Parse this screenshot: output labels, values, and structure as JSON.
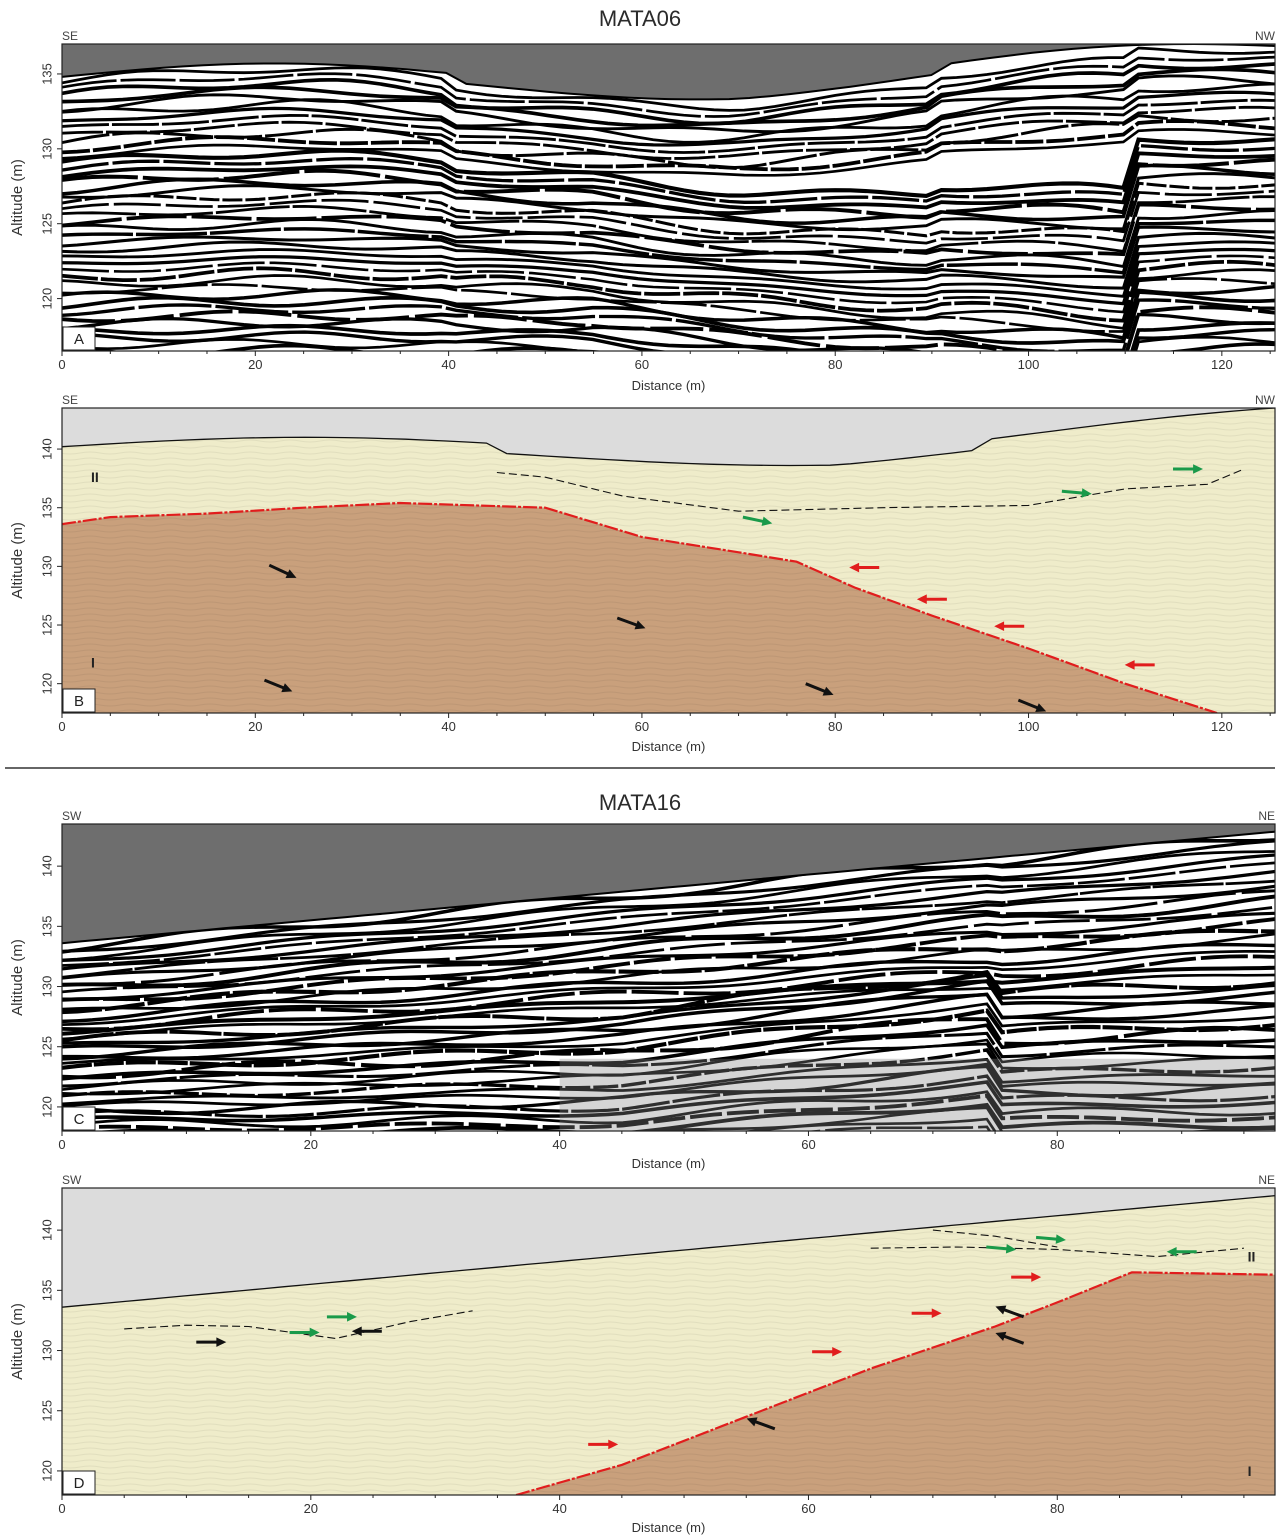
{
  "figure": {
    "top": {
      "title": "MATA06",
      "panels": [
        {
          "id": "A",
          "type": "radargram",
          "left_dir": "SE",
          "right_dir": "NW",
          "x_label": "Distance (m)",
          "y_label": "Altitude (m)",
          "x_ticks": [
            "0",
            "20",
            "40",
            "60",
            "80",
            "100",
            "120"
          ],
          "y_ticks": [
            "135",
            "130",
            "125",
            "120"
          ],
          "x_range": [
            0,
            125.5
          ],
          "y_range": [
            116.5,
            137
          ]
        },
        {
          "id": "B",
          "type": "interpretation",
          "left_dir": "SE",
          "right_dir": "NW",
          "x_label": "Distance (m)",
          "y_label": "Altitude (m)",
          "x_ticks": [
            "0",
            "20",
            "40",
            "60",
            "80",
            "100",
            "120"
          ],
          "y_ticks": [
            "140",
            "135",
            "130",
            "125",
            "120"
          ],
          "x_range": [
            0,
            125.5
          ],
          "y_range": [
            117.5,
            143.5
          ],
          "units": [
            "II",
            "I"
          ]
        }
      ]
    },
    "bottom": {
      "title": "MATA16",
      "panels": [
        {
          "id": "C",
          "type": "radargram",
          "left_dir": "SW",
          "right_dir": "NE",
          "x_label": "Distance (m)",
          "y_label": "Altitude (m)",
          "x_ticks": [
            "0",
            "20",
            "40",
            "60",
            "80"
          ],
          "y_ticks": [
            "140",
            "135",
            "130",
            "125",
            "120"
          ],
          "x_range": [
            0,
            97.5
          ],
          "y_range": [
            118,
            143.5
          ]
        },
        {
          "id": "D",
          "type": "interpretation",
          "left_dir": "SW",
          "right_dir": "NE",
          "x_label": "Distance (m)",
          "y_label": "Altitude (m)",
          "x_ticks": [
            "0",
            "20",
            "40",
            "60",
            "80"
          ],
          "y_ticks": [
            "140",
            "135",
            "130",
            "125",
            "120"
          ],
          "x_range": [
            0,
            97.5
          ],
          "y_range": [
            118,
            143.5
          ],
          "units": [
            "II",
            "I"
          ]
        }
      ]
    }
  },
  "colors": {
    "air_dark": "#6e6e6e",
    "air_light": "#dcdcdc",
    "unit_II": "#efecca",
    "unit_I": "#c9a07c",
    "boundary": "#e11d1d",
    "arrow_red": "#e11d1d",
    "arrow_green": "#1a9a4a",
    "arrow_black": "#111111"
  }
}
